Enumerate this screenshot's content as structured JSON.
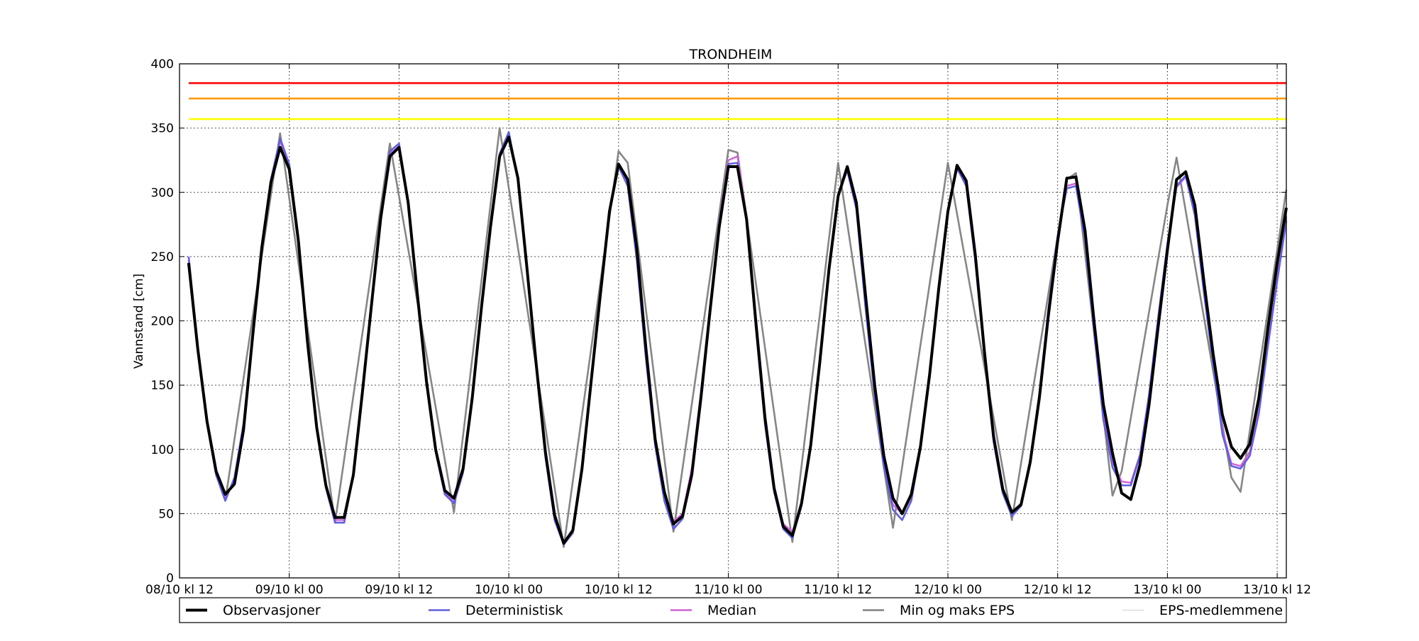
{
  "chart_data": {
    "type": "line",
    "title": "TRONDHEIM",
    "xlabel": "",
    "ylabel": "Vannstand [cm]",
    "ylim": [
      0,
      400
    ],
    "yticks": [
      0,
      50,
      100,
      150,
      200,
      250,
      300,
      350,
      400
    ],
    "x_range_hours": [
      0,
      121
    ],
    "x_ticks": [
      {
        "hour": 0,
        "label": "08/10 kl 12"
      },
      {
        "hour": 12,
        "label": "09/10 kl 00"
      },
      {
        "hour": 24,
        "label": "09/10 kl 12"
      },
      {
        "hour": 36,
        "label": "10/10 kl 00"
      },
      {
        "hour": 48,
        "label": "10/10 kl 12"
      },
      {
        "hour": 60,
        "label": "11/10 kl 00"
      },
      {
        "hour": 72,
        "label": "11/10 kl 12"
      },
      {
        "hour": 84,
        "label": "12/10 kl 00"
      },
      {
        "hour": 96,
        "label": "12/10 kl 12"
      },
      {
        "hour": 108,
        "label": "13/10 kl 00"
      },
      {
        "hour": 120,
        "label": "13/10 kl 12"
      }
    ],
    "grid": true,
    "legend_position": "bottom",
    "thresholds": [
      {
        "value": 385,
        "color": "#ff0000"
      },
      {
        "value": 373,
        "color": "#ff9900"
      },
      {
        "value": 357,
        "color": "#ffff00"
      }
    ],
    "series": [
      {
        "name": "Observasjoner",
        "color": "#000000",
        "hours": [
          1,
          2,
          3,
          4,
          5,
          6,
          7,
          8,
          9,
          10,
          11,
          12,
          13,
          14,
          15,
          16,
          17,
          18,
          19,
          20,
          21,
          22,
          23,
          24,
          25,
          26,
          27,
          28,
          29,
          30,
          31,
          32,
          33,
          34,
          35,
          36,
          37,
          38,
          39,
          40,
          41,
          42,
          43,
          44,
          45,
          46,
          47,
          48,
          49,
          50,
          51,
          52,
          53,
          54,
          55,
          56,
          57,
          58,
          59,
          60,
          61,
          62,
          63,
          64,
          65,
          66,
          67,
          68,
          69,
          70,
          71,
          72,
          73,
          74,
          75,
          76,
          77,
          78,
          79,
          80,
          81,
          82,
          83,
          84,
          85,
          86,
          87,
          88,
          89,
          90,
          91,
          92,
          93,
          94,
          95,
          96,
          97,
          98,
          99,
          100,
          101,
          102,
          103,
          104,
          105,
          106,
          107,
          108,
          109,
          110,
          111,
          112,
          113,
          114,
          115,
          116,
          117,
          118,
          119,
          120,
          121
        ],
        "values": [
          245,
          178,
          122,
          83,
          65,
          73,
          115,
          188,
          257,
          308,
          335,
          318,
          262,
          183,
          117,
          72,
          47,
          47,
          80,
          145,
          213,
          280,
          328,
          335,
          292,
          221,
          153,
          100,
          68,
          62,
          85,
          140,
          210,
          273,
          328,
          343,
          311,
          240,
          166,
          98,
          49,
          27,
          37,
          85,
          153,
          220,
          285,
          322,
          310,
          256,
          178,
          108,
          67,
          42,
          48,
          80,
          140,
          208,
          273,
          320,
          320,
          279,
          200,
          125,
          70,
          40,
          33,
          58,
          103,
          168,
          240,
          297,
          320,
          292,
          220,
          150,
          95,
          62,
          50,
          65,
          102,
          158,
          225,
          285,
          321,
          309,
          251,
          176,
          110,
          69,
          51,
          57,
          90,
          140,
          205,
          262,
          311,
          312,
          270,
          198,
          135,
          97,
          66,
          61,
          88,
          135,
          196,
          255,
          310,
          316,
          290,
          230,
          174,
          127,
          102,
          93,
          104,
          140,
          195,
          245,
          288
        ]
      },
      {
        "name": "Deterministisk",
        "color": "#6060dd",
        "hours": [
          1,
          2,
          3,
          4,
          5,
          6,
          7,
          8,
          9,
          10,
          11,
          12,
          13,
          14,
          15,
          16,
          17,
          18,
          19,
          20,
          21,
          22,
          23,
          24,
          25,
          26,
          27,
          28,
          29,
          30,
          31,
          32,
          33,
          34,
          35,
          36,
          37,
          38,
          39,
          40,
          41,
          42,
          43,
          44,
          45,
          46,
          47,
          48,
          49,
          50,
          51,
          52,
          53,
          54,
          55,
          56,
          57,
          58,
          59,
          60,
          61,
          62,
          63,
          64,
          65,
          66,
          67,
          68,
          69,
          70,
          71,
          72,
          73,
          74,
          75,
          76,
          77,
          78,
          79,
          80,
          81,
          82,
          83,
          84,
          85,
          86,
          87,
          88,
          89,
          90,
          91,
          92,
          93,
          94,
          95,
          96,
          97,
          98,
          99,
          100,
          101,
          102,
          103,
          104,
          105,
          106,
          107,
          108,
          109,
          110,
          111,
          112,
          113,
          114,
          115,
          116,
          117,
          118,
          119,
          120,
          121
        ],
        "values": [
          250,
          180,
          120,
          80,
          60,
          78,
          120,
          190,
          258,
          310,
          342,
          322,
          265,
          185,
          118,
          70,
          43,
          43,
          80,
          147,
          215,
          282,
          332,
          338,
          293,
          220,
          150,
          98,
          65,
          58,
          82,
          138,
          210,
          275,
          330,
          347,
          310,
          238,
          163,
          94,
          45,
          26,
          35,
          85,
          155,
          222,
          286,
          320,
          305,
          247,
          170,
          103,
          60,
          38,
          46,
          82,
          143,
          211,
          276,
          322,
          323,
          277,
          195,
          120,
          67,
          38,
          31,
          56,
          103,
          170,
          242,
          298,
          317,
          287,
          210,
          142,
          86,
          53,
          45,
          60,
          100,
          160,
          227,
          287,
          319,
          305,
          246,
          172,
          106,
          66,
          48,
          56,
          90,
          143,
          210,
          266,
          303,
          305,
          262,
          190,
          123,
          86,
          72,
          72,
          95,
          143,
          203,
          260,
          305,
          313,
          282,
          221,
          166,
          112,
          87,
          85,
          95,
          128,
          181,
          231,
          278
        ]
      },
      {
        "name": "Median",
        "color": "#d060d8",
        "hours": [
          1,
          2,
          3,
          4,
          5,
          6,
          7,
          8,
          9,
          10,
          11,
          12,
          13,
          14,
          15,
          16,
          17,
          18,
          19,
          20,
          21,
          22,
          23,
          24,
          25,
          26,
          27,
          28,
          29,
          30,
          31,
          32,
          33,
          34,
          35,
          36,
          37,
          38,
          39,
          40,
          41,
          42,
          43,
          44,
          45,
          46,
          47,
          48,
          49,
          50,
          51,
          52,
          53,
          54,
          55,
          56,
          57,
          58,
          59,
          60,
          61,
          62,
          63,
          64,
          65,
          66,
          67,
          68,
          69,
          70,
          71,
          72,
          73,
          74,
          75,
          76,
          77,
          78,
          79,
          80,
          81,
          82,
          83,
          84,
          85,
          86,
          87,
          88,
          89,
          90,
          91,
          92,
          93,
          94,
          95,
          96,
          97,
          98,
          99,
          100,
          101,
          102,
          103,
          104,
          105,
          106,
          107,
          108,
          109,
          110,
          111,
          112,
          113,
          114,
          115,
          116,
          117,
          118,
          119,
          120,
          121
        ],
        "values": [
          247,
          178,
          121,
          80,
          62,
          76,
          118,
          189,
          257,
          309,
          340,
          320,
          263,
          184,
          118,
          71,
          45,
          45,
          80,
          146,
          214,
          281,
          330,
          336,
          292,
          220,
          152,
          99,
          66,
          59,
          83,
          139,
          211,
          276,
          329,
          345,
          311,
          239,
          165,
          96,
          47,
          28,
          37,
          86,
          156,
          223,
          287,
          322,
          308,
          250,
          173,
          106,
          64,
          44,
          50,
          85,
          145,
          212,
          277,
          325,
          328,
          281,
          200,
          124,
          70,
          42,
          36,
          58,
          105,
          172,
          243,
          299,
          318,
          289,
          214,
          146,
          90,
          57,
          50,
          63,
          102,
          160,
          226,
          286,
          318,
          306,
          248,
          174,
          108,
          68,
          51,
          58,
          92,
          144,
          209,
          264,
          305,
          307,
          265,
          193,
          127,
          90,
          75,
          74,
          96,
          143,
          202,
          258,
          304,
          312,
          283,
          223,
          168,
          115,
          89,
          87,
          98,
          131,
          183,
          233,
          281
        ]
      },
      {
        "name": "Min og maks EPS",
        "color": "#808080",
        "hours": [
          5,
          11,
          17,
          23,
          30,
          35,
          42,
          48,
          49,
          54,
          60,
          61,
          67,
          72,
          78,
          84,
          91,
          97,
          98,
          102,
          103,
          108,
          109,
          115,
          116,
          121
        ],
        "values": [
          60,
          346,
          43,
          338,
          51,
          350,
          24,
          332,
          323,
          36,
          333,
          331,
          28,
          323,
          39,
          323,
          45,
          310,
          315,
          64,
          83,
          290,
          327,
          78,
          67,
          302
        ]
      },
      {
        "name": "EPS-medlemmene",
        "color": "#d8d8d8",
        "hours": [],
        "values": []
      }
    ]
  }
}
